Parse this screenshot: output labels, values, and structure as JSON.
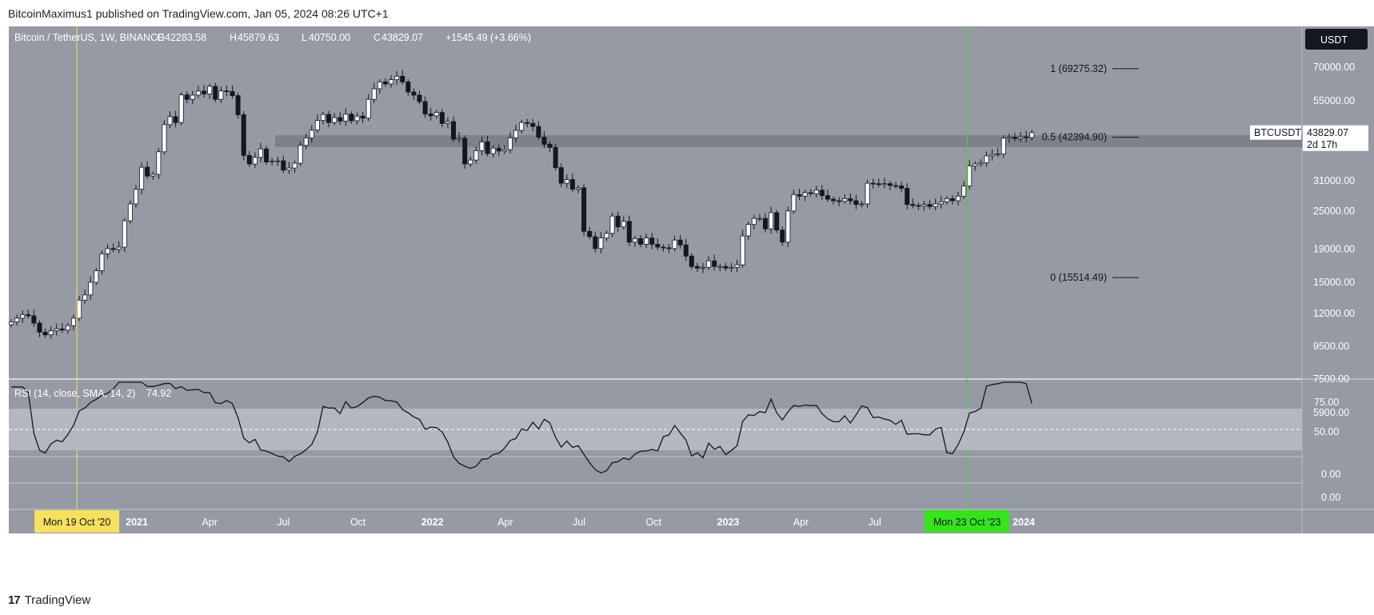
{
  "header": {
    "published": "BitcoinMaximus1 published on TradingView.com, Jan 05, 2024 08:26 UTC+1"
  },
  "footer": {
    "logo_text": "TradingView"
  },
  "colors": {
    "panel_bg": "#959aa4",
    "up": "#ffffff",
    "down": "#131722",
    "resistance_band": "#7d818a",
    "rsi_band": "#b4b7be",
    "yellow_marker": "#f6e05e",
    "green_marker": "#35e51c"
  },
  "chart_data": {
    "type": "candlestick",
    "symbol": "Bitcoin / TetherUS, 1W, BINANCE",
    "ohlc_header": {
      "O": "42283.58",
      "H": "45879.63",
      "L": "40750.00",
      "C": "43829.07",
      "change": "+1545.49 (+3.66%)"
    },
    "currency_badge": "USDT",
    "y_scale": "log",
    "y_ticks": [
      "70000.00",
      "55000.00",
      "31000.00",
      "25000.00",
      "19000.00",
      "15000.00",
      "12000.00",
      "9500.00",
      "7500.00",
      "5900.00"
    ],
    "price_label": {
      "ticker": "BTCUSDT",
      "value": "43829.07",
      "countdown": "2d 17h"
    },
    "x_ticks": [
      "2021",
      "Apr",
      "Jul",
      "Oct",
      "2022",
      "Apr",
      "Jul",
      "Oct",
      "2023",
      "Apr",
      "Jul",
      "Oct",
      "2024"
    ],
    "fib_levels": [
      {
        "label": "1 (69275.32)",
        "value": 69275.32
      },
      {
        "label": "0.5 (42394.90)",
        "value": 42394.9
      },
      {
        "label": "0 (15514.49)",
        "value": 15514.49
      }
    ],
    "resistance_zone": [
      39500,
      43000
    ],
    "markers": [
      {
        "label": "Mon 19 Oct '20",
        "date": "2020-10-19",
        "color": "#f6e05e"
      },
      {
        "label": "Mon 23 Oct '23",
        "date": "2023-10-23",
        "color": "#35e51c"
      }
    ],
    "series_closes": [
      11300,
      11600,
      11900,
      11800,
      11200,
      10500,
      10300,
      10600,
      10750,
      10650,
      11000,
      11600,
      13200,
      13700,
      15000,
      16300,
      18400,
      19100,
      19000,
      19300,
      23300,
      26300,
      29200,
      34200,
      32100,
      32500,
      38200,
      46400,
      49100,
      47100,
      57400,
      55600,
      57300,
      59000,
      57800,
      61000,
      55600,
      59100,
      58800,
      57100,
      49800,
      37200,
      35000,
      36700,
      39000,
      35500,
      35700,
      35800,
      33500,
      34000,
      35200,
      40000,
      42200,
      44600,
      47800,
      49900,
      47100,
      48800,
      47600,
      50000,
      47700,
      49300,
      48600,
      55600,
      60000,
      63000,
      62100,
      64000,
      65600,
      63000,
      58600,
      57300,
      54700,
      50100,
      49400,
      50600,
      46800,
      47400,
      41800,
      42100,
      35000,
      36000,
      38500,
      41000,
      37700,
      39200,
      38400,
      38800,
      42200,
      44500,
      47100,
      46800,
      45800,
      42400,
      40300,
      39400,
      34100,
      30500,
      31300,
      29200,
      29500,
      21600,
      20800,
      19100,
      20600,
      21300,
      24100,
      22300,
      23200,
      20000,
      20500,
      19700,
      20600,
      19700,
      19300,
      19200,
      19100,
      20300,
      19600,
      18100,
      16800,
      16600,
      16700,
      17500,
      16800,
      16800,
      16600,
      16700,
      17000,
      20900,
      22700,
      23700,
      23700,
      22000,
      24700,
      21800,
      20000,
      25000,
      28100,
      27800,
      28500,
      28300,
      29000,
      27900,
      27200,
      26900,
      26800,
      27300,
      26900,
      26200,
      26300,
      30500,
      30400,
      30200,
      30400,
      30000,
      29900,
      29400,
      26200,
      26000,
      25900,
      26200,
      25800,
      26300,
      26700,
      27300,
      26900,
      27800,
      29900,
      34500,
      35000,
      35300,
      37100,
      37500,
      37600,
      42100,
      42400,
      42000,
      42500,
      42300,
      43829
    ],
    "rsi": {
      "label": "RSI (14, close, SMA, 14, 2)",
      "value_label": "74.92",
      "current": 74.92,
      "ticks": [
        "75.00",
        "50.00",
        "0.00",
        "0.00"
      ],
      "band": [
        30,
        70
      ]
    }
  }
}
